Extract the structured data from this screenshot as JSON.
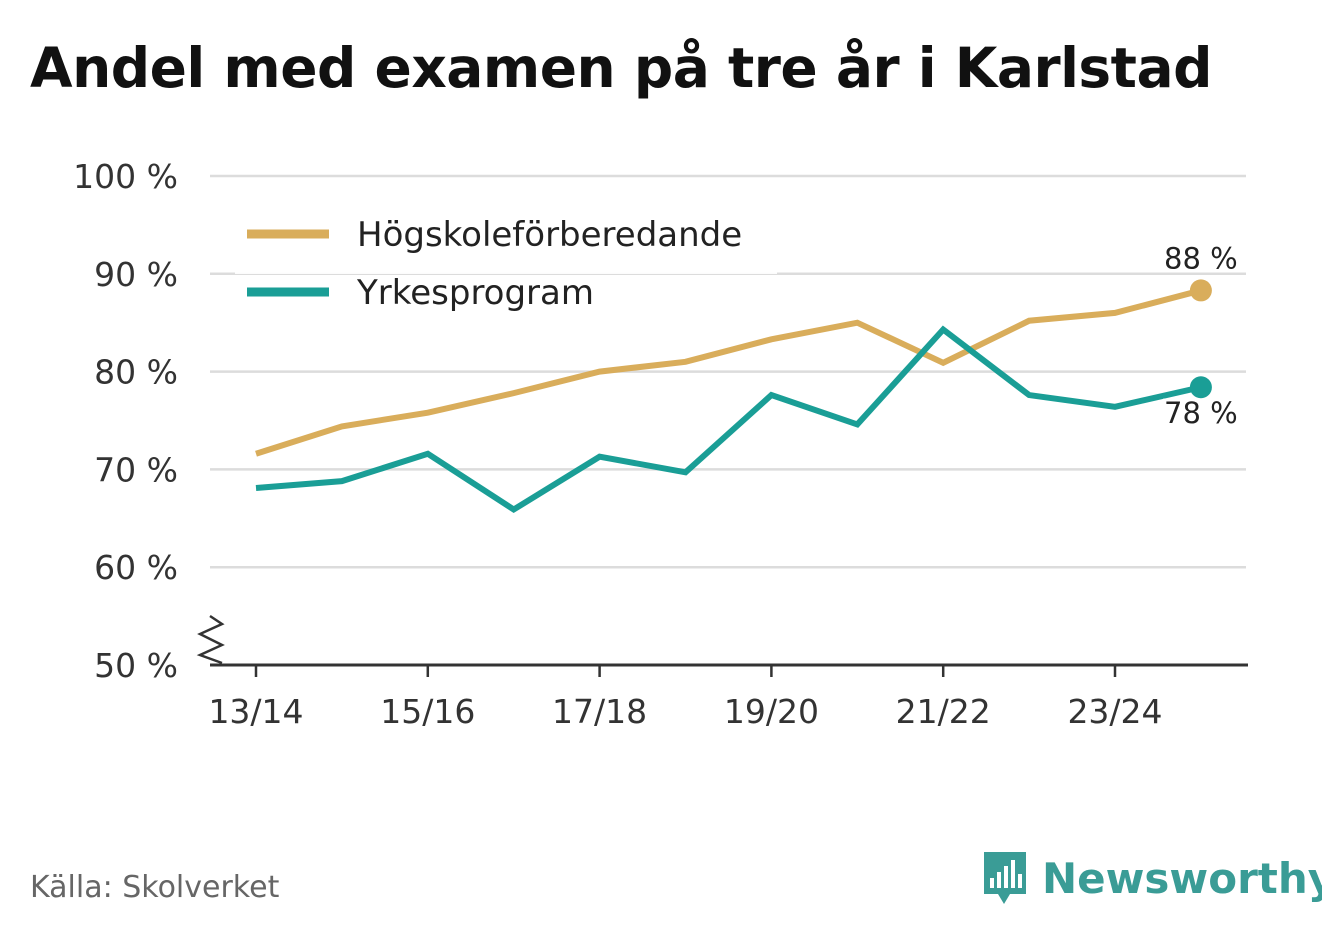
{
  "title": "Andel med examen på tre år i Karlstad",
  "source": "Källa: Skolverket",
  "brand": {
    "name": "Newsworthy",
    "icon": "newsworthy-logo-icon",
    "color": "#3a9c96"
  },
  "chart_data": {
    "type": "line",
    "title": "Andel med examen på tre år i Karlstad",
    "x": [
      "13/14",
      "14/15",
      "15/16",
      "16/17",
      "17/18",
      "18/19",
      "19/20",
      "20/21",
      "21/22",
      "22/23",
      "23/24",
      "24/25"
    ],
    "x_tick_labels": [
      "13/14",
      "15/16",
      "17/18",
      "19/20",
      "21/22",
      "23/24"
    ],
    "y_tick_labels": [
      "50 %",
      "60 %",
      "70 %",
      "80 %",
      "90 %",
      "100 %"
    ],
    "y_ticks": [
      50,
      60,
      70,
      80,
      90,
      100
    ],
    "ylim": [
      50,
      100
    ],
    "y_axis_break": true,
    "grid": true,
    "legend_position": "top-left",
    "series": [
      {
        "name": "Högskoleförberedande",
        "color": "#d9ad5b",
        "values": [
          71.6,
          74.4,
          75.8,
          77.8,
          80.0,
          81.0,
          83.3,
          85.0,
          80.9,
          85.2,
          86.0,
          88.3
        ],
        "end_label": "88 %"
      },
      {
        "name": "Yrkesprogram",
        "color": "#1a9e96",
        "values": [
          68.1,
          68.8,
          71.6,
          65.9,
          71.3,
          69.7,
          77.6,
          74.6,
          84.3,
          77.6,
          76.4,
          78.4
        ],
        "end_label": "78 %"
      }
    ]
  }
}
